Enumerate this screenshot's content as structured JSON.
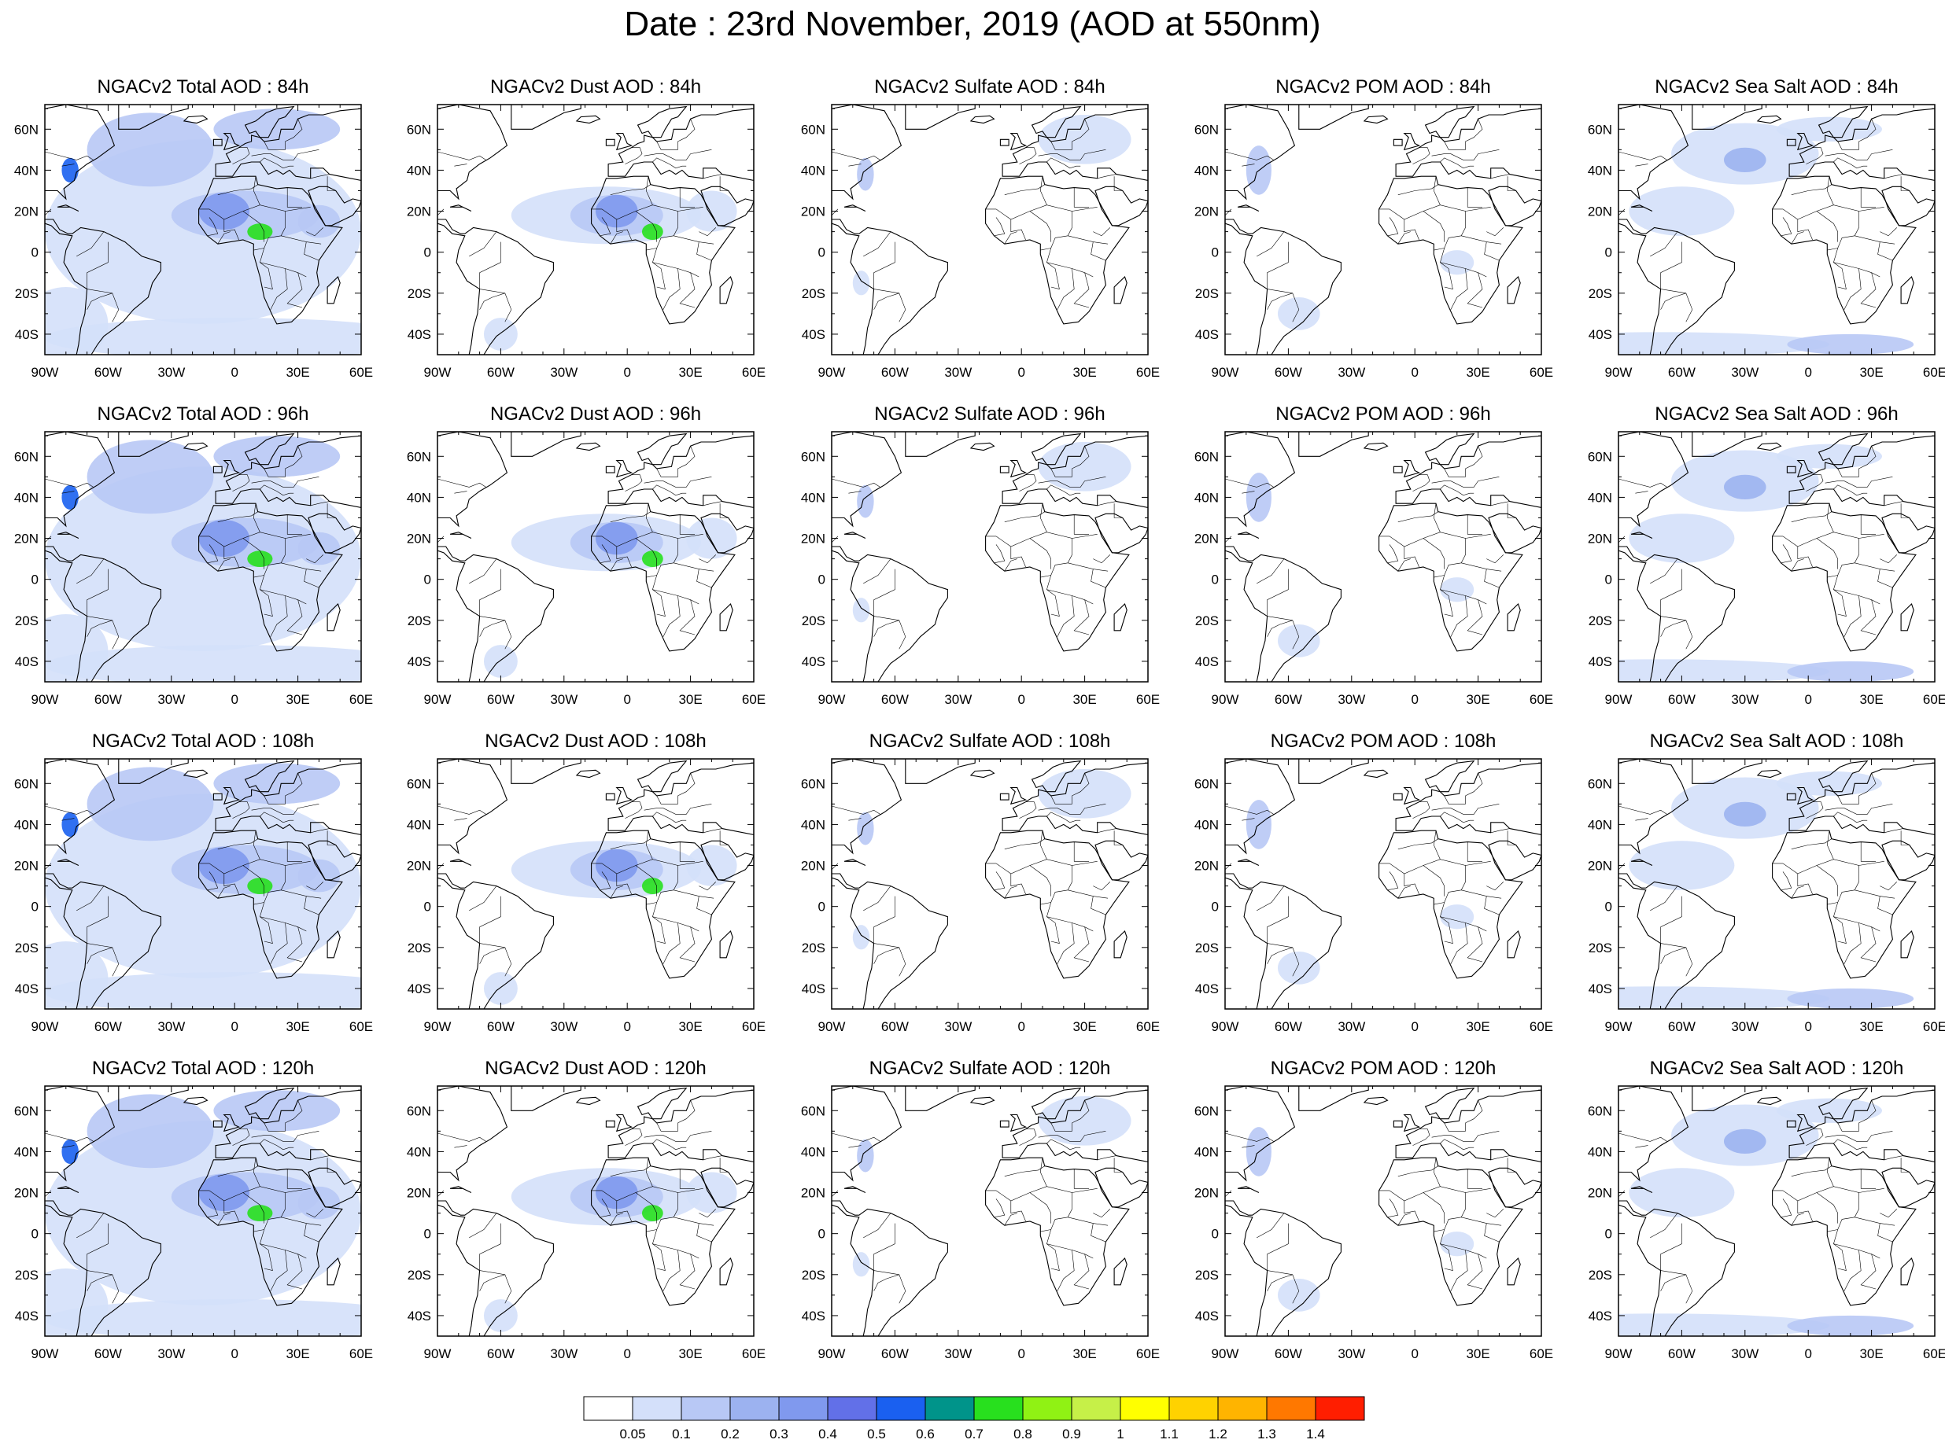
{
  "title": "Date : 23rd November, 2019 (AOD at 550nm)",
  "longitude_labels": [
    "90W",
    "60W",
    "30W",
    "0",
    "30E",
    "60E"
  ],
  "latitude_labels": [
    "60N",
    "40N",
    "20N",
    "0",
    "20S",
    "40S"
  ],
  "panels": [
    {
      "row": 0,
      "col": 0,
      "species": "total",
      "title": "NGACv2 Total AOD : 84h"
    },
    {
      "row": 0,
      "col": 1,
      "species": "dust",
      "title": "NGACv2 Dust AOD : 84h"
    },
    {
      "row": 0,
      "col": 2,
      "species": "sulfate",
      "title": "NGACv2 Sulfate AOD : 84h"
    },
    {
      "row": 0,
      "col": 3,
      "species": "pom",
      "title": "NGACv2 POM AOD : 84h"
    },
    {
      "row": 0,
      "col": 4,
      "species": "seasalt",
      "title": "NGACv2 Sea Salt AOD : 84h"
    },
    {
      "row": 1,
      "col": 0,
      "species": "total",
      "title": "NGACv2 Total AOD : 96h"
    },
    {
      "row": 1,
      "col": 1,
      "species": "dust",
      "title": "NGACv2 Dust AOD : 96h"
    },
    {
      "row": 1,
      "col": 2,
      "species": "sulfate",
      "title": "NGACv2 Sulfate AOD : 96h"
    },
    {
      "row": 1,
      "col": 3,
      "species": "pom",
      "title": "NGACv2 POM AOD : 96h"
    },
    {
      "row": 1,
      "col": 4,
      "species": "seasalt",
      "title": "NGACv2 Sea Salt AOD : 96h"
    },
    {
      "row": 2,
      "col": 0,
      "species": "total",
      "title": "NGACv2 Total AOD : 108h"
    },
    {
      "row": 2,
      "col": 1,
      "species": "dust",
      "title": "NGACv2 Dust AOD : 108h"
    },
    {
      "row": 2,
      "col": 2,
      "species": "sulfate",
      "title": "NGACv2 Sulfate AOD : 108h"
    },
    {
      "row": 2,
      "col": 3,
      "species": "pom",
      "title": "NGACv2 POM AOD : 108h"
    },
    {
      "row": 2,
      "col": 4,
      "species": "seasalt",
      "title": "NGACv2 Sea Salt AOD : 108h"
    },
    {
      "row": 3,
      "col": 0,
      "species": "total",
      "title": "NGACv2 Total AOD : 120h"
    },
    {
      "row": 3,
      "col": 1,
      "species": "dust",
      "title": "NGACv2 Dust AOD : 120h"
    },
    {
      "row": 3,
      "col": 2,
      "species": "sulfate",
      "title": "NGACv2 Sulfate AOD : 120h"
    },
    {
      "row": 3,
      "col": 3,
      "species": "pom",
      "title": "NGACv2 POM AOD : 120h"
    },
    {
      "row": 3,
      "col": 4,
      "species": "seasalt",
      "title": "NGACv2 Sea Salt  AOD : 120h"
    }
  ],
  "colorbar": {
    "colors": [
      "#ffffff",
      "#d4e0fa",
      "#b8c8f5",
      "#9cb2f0",
      "#8099ee",
      "#6270e8",
      "#1a60f0",
      "#00948a",
      "#28e01e",
      "#90f214",
      "#c6f048",
      "#ffff00",
      "#ffd200",
      "#ffb400",
      "#ff7800",
      "#ff1e00"
    ],
    "labels": [
      "0.05",
      "0.1",
      "0.2",
      "0.3",
      "0.4",
      "0.5",
      "0.6",
      "0.7",
      "0.8",
      "0.9",
      "1",
      "1.1",
      "1.2",
      "1.3",
      "1.4"
    ]
  },
  "colors": {
    "coastline": "#000000",
    "frame": "#000000"
  }
}
